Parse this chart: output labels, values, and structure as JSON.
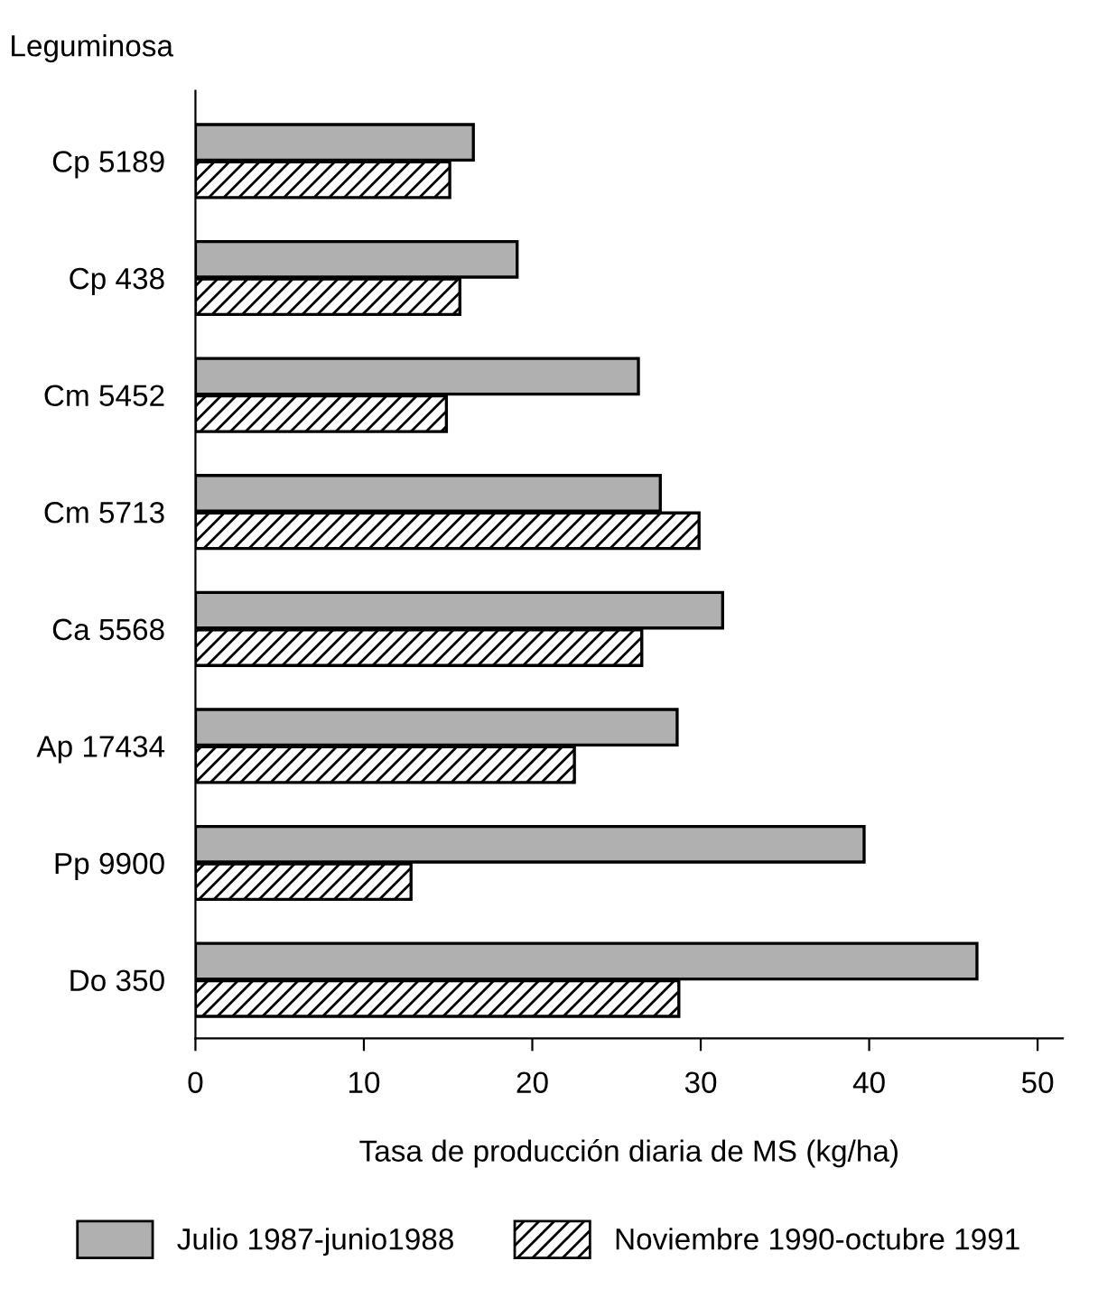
{
  "chart_data": {
    "type": "bar",
    "orientation": "horizontal",
    "ylabel": "Leguminosa",
    "xlabel": "Tasa de producción diaria de MS (kg/ha)",
    "categories": [
      "Cp 5189",
      "Cp 438",
      "Cm 5452",
      "Cm 5713",
      "Ca 5568",
      "Ap 17434",
      "Pp 9900",
      "Do 350"
    ],
    "series": [
      {
        "name": "Julio 1987-junio1988",
        "color": "#b0b0b0",
        "values": [
          16.5,
          19.1,
          26.3,
          27.6,
          31.3,
          28.6,
          39.7,
          46.4
        ]
      },
      {
        "name": "Noviembre 1990-octubre 1991",
        "color": "#000000",
        "values": [
          15.1,
          15.7,
          14.9,
          29.9,
          26.5,
          22.5,
          12.8,
          28.7
        ]
      }
    ],
    "xlim": [
      0,
      51.5
    ],
    "xticks": [
      0,
      10,
      20,
      30,
      40,
      50
    ],
    "grid": false,
    "legend": "bottom"
  }
}
